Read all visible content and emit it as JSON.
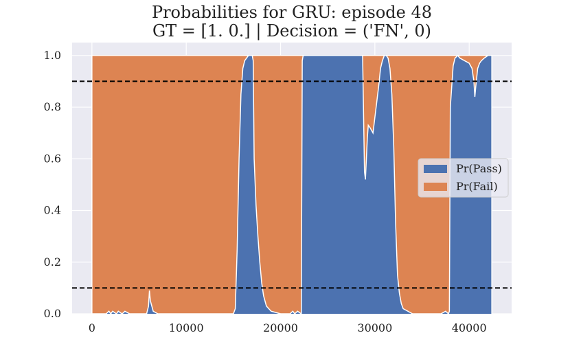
{
  "chart_data": {
    "type": "area",
    "title": "Probabilities for GRU: episode 48",
    "subtitle": "GT = [1. 0.] | Decision = ('FN', 0)",
    "xlabel": "",
    "ylabel": "",
    "xlim": [
      -2100,
      44500
    ],
    "ylim": [
      0.0,
      1.05
    ],
    "x_ticks": [
      0,
      10000,
      20000,
      30000,
      40000
    ],
    "y_ticks": [
      "0.0",
      "0.2",
      "0.4",
      "0.6",
      "0.8",
      "1.0"
    ],
    "grid": true,
    "stacked": true,
    "legend": {
      "placement": "center-right"
    },
    "thresholds": [
      0.9,
      0.1
    ],
    "series": [
      {
        "name": "Pr(Pass)",
        "color": "#4c72b0",
        "x": [
          0,
          1500,
          1800,
          2000,
          2200,
          2600,
          2800,
          3200,
          3500,
          4000,
          5000,
          5800,
          6000,
          6100,
          6200,
          6500,
          7000,
          8000,
          10000,
          12000,
          14000,
          15000,
          15200,
          15400,
          15600,
          15800,
          16000,
          16200,
          16400,
          16600,
          16800,
          17000,
          17100,
          17200,
          17400,
          17600,
          17800,
          18000,
          18200,
          18500,
          19000,
          20000,
          21000,
          21300,
          21500,
          21800,
          22200,
          22300,
          22400,
          22500,
          25000,
          28000,
          28700,
          28900,
          29000,
          29100,
          29200,
          29300,
          29500,
          29800,
          30000,
          30200,
          30400,
          30600,
          30800,
          31000,
          31200,
          31400,
          31500,
          31600,
          31800,
          32000,
          32200,
          32400,
          32600,
          32800,
          33000,
          33500,
          34000,
          36000,
          37000,
          37500,
          37800,
          37900,
          38000,
          38300,
          38500,
          38800,
          39000,
          39500,
          40000,
          40300,
          40500,
          40600,
          40700,
          40900,
          41100,
          41300,
          41600,
          42000,
          42400
        ],
        "values": [
          0.0,
          0.0,
          0.01,
          0.0,
          0.01,
          0.0,
          0.01,
          0.0,
          0.01,
          0.0,
          0.0,
          0.0,
          0.03,
          0.09,
          0.05,
          0.01,
          0.0,
          0.0,
          0.0,
          0.0,
          0.0,
          0.0,
          0.02,
          0.25,
          0.6,
          0.85,
          0.95,
          0.98,
          0.99,
          1.0,
          1.0,
          1.0,
          0.98,
          0.6,
          0.42,
          0.3,
          0.2,
          0.12,
          0.07,
          0.03,
          0.01,
          0.0,
          0.0,
          0.01,
          0.0,
          0.01,
          0.0,
          0.98,
          1.0,
          1.0,
          1.0,
          1.0,
          1.0,
          0.55,
          0.52,
          0.6,
          0.68,
          0.73,
          0.72,
          0.7,
          0.76,
          0.82,
          0.88,
          0.95,
          0.98,
          1.0,
          1.0,
          0.99,
          0.97,
          0.95,
          0.85,
          0.65,
          0.35,
          0.15,
          0.08,
          0.04,
          0.02,
          0.01,
          0.0,
          0.0,
          0.0,
          0.01,
          0.0,
          0.01,
          0.8,
          0.96,
          0.99,
          1.0,
          0.99,
          0.98,
          0.97,
          0.95,
          0.9,
          0.84,
          0.88,
          0.95,
          0.97,
          0.98,
          0.99,
          1.0,
          1.0
        ]
      },
      {
        "name": "Pr(Fail)",
        "color": "#dd8452"
      }
    ]
  }
}
